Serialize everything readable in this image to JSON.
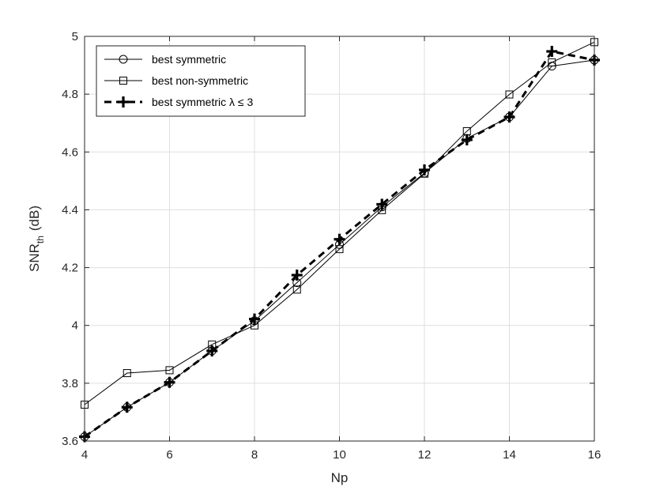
{
  "chart_data": {
    "type": "line",
    "xlabel": "Np",
    "ylabel_main": "SNR",
    "ylabel_sub": "th",
    "ylabel_unit": "(dB)",
    "xlim": [
      4,
      16
    ],
    "ylim": [
      3.6,
      5
    ],
    "xticks": [
      "4",
      "6",
      "8",
      "10",
      "12",
      "14",
      "16"
    ],
    "yticks": [
      "3.6",
      "3.8",
      "4",
      "4.2",
      "4.4",
      "4.6",
      "4.8",
      "5"
    ],
    "grid": true,
    "legend_position": "top-left",
    "x": [
      4,
      5,
      6,
      7,
      8,
      9,
      10,
      11,
      12,
      13,
      14,
      15,
      16
    ],
    "series": [
      {
        "name": "best symmetric",
        "marker": "circle",
        "line": "solid",
        "values": [
          3.615,
          3.717,
          3.803,
          3.912,
          4.016,
          4.148,
          4.28,
          4.41,
          4.527,
          4.647,
          4.721,
          4.897,
          4.918
        ]
      },
      {
        "name": "best non-symmetric",
        "marker": "square",
        "line": "solid",
        "values": [
          3.726,
          3.835,
          3.845,
          3.934,
          4.0,
          4.124,
          4.264,
          4.399,
          4.525,
          4.672,
          4.799,
          4.91,
          4.98
        ]
      },
      {
        "name": "best symmetric λ ≤ 3",
        "marker": "plus",
        "line": "dashed",
        "values": [
          3.615,
          3.717,
          3.803,
          3.912,
          4.022,
          4.174,
          4.298,
          4.419,
          4.538,
          4.642,
          4.721,
          4.948,
          4.918
        ]
      }
    ]
  }
}
